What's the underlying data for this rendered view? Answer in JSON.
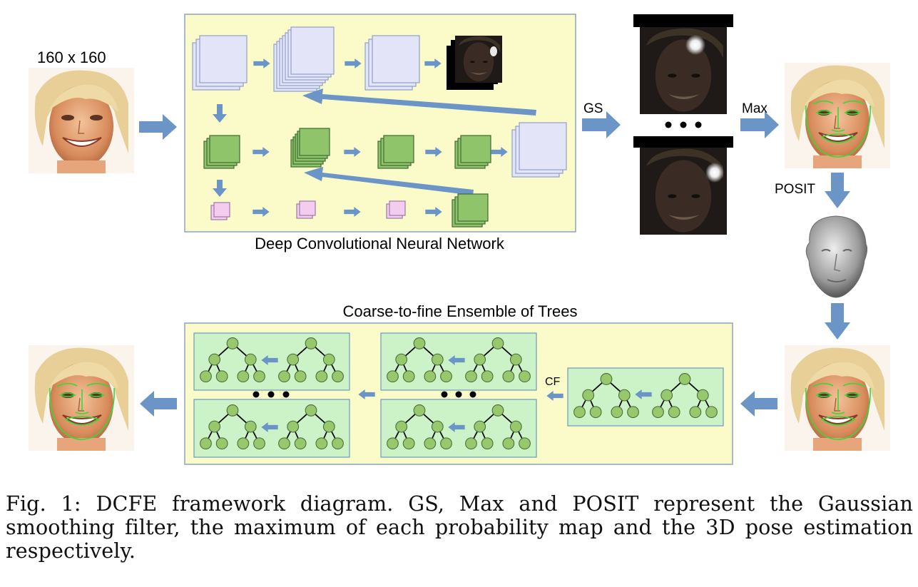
{
  "labels": {
    "input_size": "160 x 160",
    "dcnn_title": "Deep Convolutional Neural Network",
    "gs": "GS",
    "max": "Max",
    "posit": "POSIT",
    "ensemble_title": "Coarse-to-fine Ensemble of Trees",
    "cf": "CF"
  },
  "caption": "Fig. 1: DCFE framework diagram. GS, Max and POSIT represent the Gaussian smoothing filter, the maximum of each probability map and the 3D pose estimation respectively.",
  "colors": {
    "panel_fill": "#fbfbc9",
    "panel_border": "#8aa3c3",
    "arrow": "#6b95c7",
    "lavender_map": "#e4e4f8",
    "green_map": "#8fc46a",
    "pink_map": "#f3ccf0",
    "tree_box": "#ccf2c8",
    "tree_node": "#98c86c",
    "landmark_line": "#38d838"
  },
  "icons": {
    "input_face": "face-photo-icon",
    "probability_map": "heatmap-icon",
    "landmark_face": "face-landmarks-icon",
    "head_model": "3d-head-icon"
  }
}
